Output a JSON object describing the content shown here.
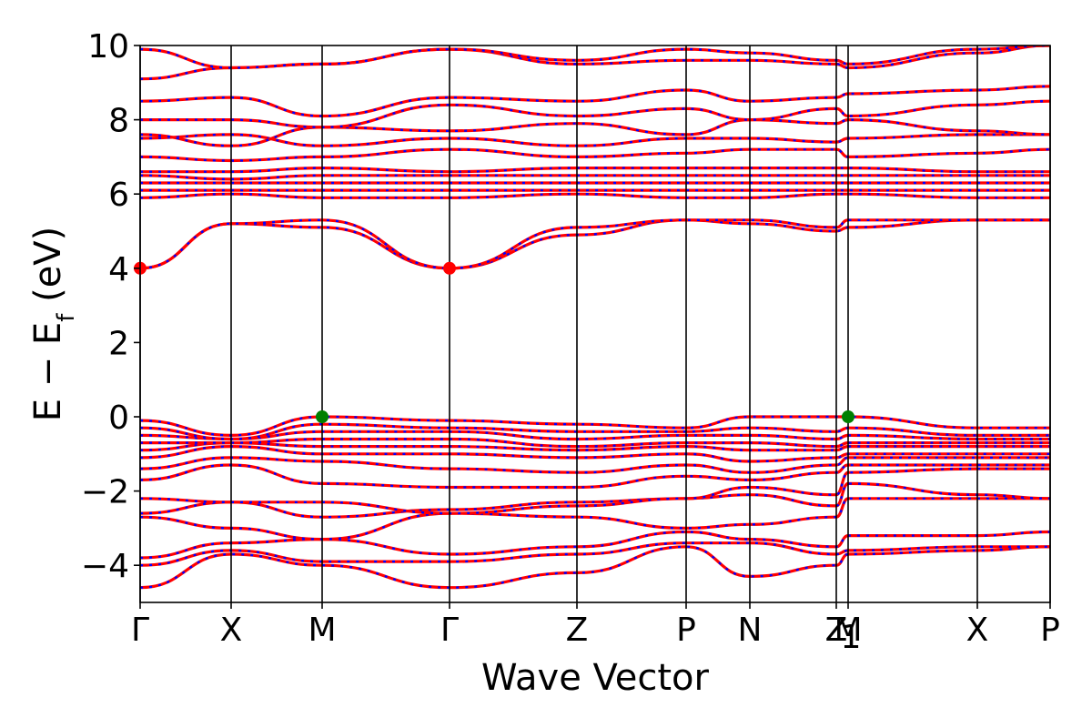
{
  "chart_data": {
    "type": "line",
    "title": "",
    "xlabel": "Wave Vector",
    "ylabel": "E − E",
    "ylabel_sub": "f",
    "ylabel_unit": " (eV)",
    "ylim": [
      -5,
      10
    ],
    "yticks": [
      {
        "value": 10,
        "label": "10"
      },
      {
        "value": 8,
        "label": "8"
      },
      {
        "value": 6,
        "label": "6"
      },
      {
        "value": 4,
        "label": "4"
      },
      {
        "value": 2,
        "label": "2"
      },
      {
        "value": 0,
        "label": "0"
      },
      {
        "value": -2,
        "label": "−2"
      },
      {
        "value": -4,
        "label": "−4"
      }
    ],
    "xlim": [
      0,
      10
    ],
    "kpoints": [
      {
        "x": 0.0,
        "label": "Γ"
      },
      {
        "x": 1.0,
        "label": "X"
      },
      {
        "x": 2.0,
        "label": "M"
      },
      {
        "x": 3.4,
        "label": "Γ"
      },
      {
        "x": 4.8,
        "label": "Z"
      },
      {
        "x": 6.0,
        "label": "P"
      },
      {
        "x": 6.7,
        "label": "N"
      },
      {
        "x": 7.65,
        "label": "Z"
      },
      {
        "x": 7.78,
        "label": "M"
      },
      {
        "x": 9.2,
        "label": "X"
      },
      {
        "x": 10.0,
        "label": "P"
      }
    ],
    "kpoint_label_extra": {
      "label": "1",
      "after_index": 7
    },
    "series_colors": {
      "primary": "#ff0000",
      "secondary": "#0000ff"
    },
    "markers": [
      {
        "x": 0.0,
        "y": 4.0,
        "type": "cbm",
        "color": "#ff0000"
      },
      {
        "x": 3.4,
        "y": 4.0,
        "type": "cbm",
        "color": "#ff0000"
      },
      {
        "x": 2.0,
        "y": 0.0,
        "type": "vbm",
        "color": "#008000"
      },
      {
        "x": 7.78,
        "y": 0.0,
        "type": "vbm",
        "color": "#008000"
      }
    ],
    "bands": [
      {
        "name": "",
        "x": [
          0,
          1,
          2,
          3.4,
          4.8,
          6,
          6.7,
          7.65,
          7.78,
          9.2,
          10
        ],
        "y": [
          -4.6,
          -3.7,
          -4.0,
          -4.6,
          -4.2,
          -3.5,
          -4.3,
          -4.0,
          -3.7,
          -3.6,
          -3.5
        ]
      },
      {
        "name": "",
        "x": [
          0,
          1,
          2,
          3.4,
          4.8,
          6,
          6.7,
          7.65,
          7.78,
          9.2,
          10
        ],
        "y": [
          -4.0,
          -3.6,
          -3.9,
          -3.9,
          -3.7,
          -3.4,
          -3.4,
          -3.7,
          -3.6,
          -3.5,
          -3.5
        ]
      },
      {
        "name": "",
        "x": [
          0,
          1,
          2,
          3.4,
          4.8,
          6,
          6.7,
          7.65,
          7.78,
          9.2,
          10
        ],
        "y": [
          -3.8,
          -3.4,
          -3.3,
          -3.7,
          -3.5,
          -3.1,
          -3.3,
          -3.5,
          -3.2,
          -3.2,
          -3.1
        ]
      },
      {
        "name": "",
        "x": [
          0,
          1,
          2,
          3.4,
          4.8,
          6,
          6.7,
          7.65,
          7.78,
          9.2,
          10
        ],
        "y": [
          -2.7,
          -3.0,
          -3.3,
          -2.6,
          -2.7,
          -3.0,
          -2.9,
          -2.7,
          -2.2,
          -2.2,
          -2.2
        ]
      },
      {
        "name": "",
        "x": [
          0,
          1,
          2,
          3.4,
          4.8,
          6,
          6.7,
          7.65,
          7.78,
          9.2,
          10
        ],
        "y": [
          -2.6,
          -2.3,
          -2.7,
          -2.5,
          -2.3,
          -2.2,
          -2.1,
          -2.4,
          -1.8,
          -2.1,
          -2.2
        ]
      },
      {
        "name": "",
        "x": [
          0,
          1,
          2,
          3.4,
          4.8,
          6,
          6.7,
          7.65,
          7.78,
          9.2,
          10
        ],
        "y": [
          -2.2,
          -2.3,
          -2.3,
          -2.6,
          -2.4,
          -2.2,
          -1.9,
          -2.1,
          -1.5,
          -1.4,
          -1.4
        ]
      },
      {
        "name": "",
        "x": [
          0,
          1,
          2,
          3.4,
          4.8,
          6,
          6.7,
          7.65,
          7.78,
          9.2,
          10
        ],
        "y": [
          -1.7,
          -1.3,
          -1.8,
          -1.9,
          -1.9,
          -1.6,
          -1.7,
          -1.5,
          -1.3,
          -1.3,
          -1.3
        ]
      },
      {
        "name": "",
        "x": [
          0,
          1,
          2,
          3.4,
          4.8,
          6,
          6.7,
          7.65,
          7.78,
          9.2,
          10
        ],
        "y": [
          -1.4,
          -1.1,
          -1.2,
          -1.4,
          -1.5,
          -1.3,
          -1.5,
          -1.3,
          -1.1,
          -1.1,
          -1.1
        ]
      },
      {
        "name": "",
        "x": [
          0,
          1,
          2,
          3.4,
          4.8,
          6,
          6.7,
          7.65,
          7.78,
          9.2,
          10
        ],
        "y": [
          -1.1,
          -0.8,
          -1.0,
          -1.0,
          -1.1,
          -1.0,
          -1.2,
          -1.1,
          -1.0,
          -1.0,
          -1.0
        ]
      },
      {
        "name": "",
        "x": [
          0,
          1,
          2,
          3.4,
          4.8,
          6,
          6.7,
          7.65,
          7.78,
          9.2,
          10
        ],
        "y": [
          -0.9,
          -0.7,
          -0.8,
          -0.8,
          -0.9,
          -0.8,
          -0.9,
          -0.9,
          -0.8,
          -0.8,
          -0.8
        ]
      },
      {
        "name": "",
        "x": [
          0,
          1,
          2,
          3.4,
          4.8,
          6,
          6.7,
          7.65,
          7.78,
          9.2,
          10
        ],
        "y": [
          -0.7,
          -0.7,
          -0.6,
          -0.6,
          -0.8,
          -0.7,
          -0.7,
          -0.8,
          -0.7,
          -0.7,
          -0.7
        ]
      },
      {
        "name": "",
        "x": [
          0,
          1,
          2,
          3.4,
          4.8,
          6,
          6.7,
          7.65,
          7.78,
          9.2,
          10
        ],
        "y": [
          -0.5,
          -0.6,
          -0.4,
          -0.4,
          -0.6,
          -0.5,
          -0.5,
          -0.6,
          -0.5,
          -0.6,
          -0.6
        ]
      },
      {
        "name": "",
        "x": [
          0,
          1,
          2,
          3.4,
          4.8,
          6,
          6.7,
          7.65,
          7.78,
          9.2,
          10
        ],
        "y": [
          -0.3,
          -0.6,
          -0.2,
          -0.3,
          -0.4,
          -0.4,
          -0.3,
          -0.4,
          -0.3,
          -0.5,
          -0.5
        ]
      },
      {
        "name": "",
        "x": [
          0,
          1,
          2,
          3.4,
          4.8,
          6,
          6.7,
          7.65,
          7.78,
          9.2,
          10
        ],
        "y": [
          -0.1,
          -0.5,
          0.0,
          -0.1,
          -0.2,
          -0.3,
          0.0,
          0.0,
          0.0,
          -0.3,
          -0.3
        ]
      },
      {
        "name": "",
        "x": [
          0,
          1,
          2,
          3.4,
          4.8,
          6,
          6.7,
          7.65,
          7.78,
          9.2,
          10
        ],
        "y": [
          4.0,
          5.2,
          5.1,
          4.0,
          4.9,
          5.3,
          5.2,
          5.0,
          5.1,
          5.3,
          5.3
        ]
      },
      {
        "name": "",
        "x": [
          0,
          1,
          2,
          3.4,
          4.8,
          6,
          6.7,
          7.65,
          7.78,
          9.2,
          10
        ],
        "y": [
          4.0,
          5.2,
          5.3,
          4.0,
          5.1,
          5.3,
          5.3,
          5.1,
          5.3,
          5.3,
          5.3
        ]
      },
      {
        "name": "",
        "x": [
          0,
          1,
          2,
          3.4,
          4.8,
          6,
          6.7,
          7.65,
          7.78,
          9.2,
          10
        ],
        "y": [
          5.9,
          6.0,
          5.9,
          5.9,
          6.0,
          5.9,
          5.9,
          6.0,
          6.0,
          5.9,
          5.9
        ]
      },
      {
        "name": "",
        "x": [
          0,
          1,
          2,
          3.4,
          4.8,
          6,
          6.7,
          7.65,
          7.78,
          9.2,
          10
        ],
        "y": [
          6.1,
          6.1,
          6.1,
          6.1,
          6.1,
          6.1,
          6.1,
          6.1,
          6.1,
          6.1,
          6.1
        ]
      },
      {
        "name": "",
        "x": [
          0,
          1,
          2,
          3.4,
          4.8,
          6,
          6.7,
          7.65,
          7.78,
          9.2,
          10
        ],
        "y": [
          6.3,
          6.3,
          6.3,
          6.3,
          6.3,
          6.3,
          6.3,
          6.3,
          6.3,
          6.3,
          6.3
        ]
      },
      {
        "name": "",
        "x": [
          0,
          1,
          2,
          3.4,
          4.8,
          6,
          6.7,
          7.65,
          7.78,
          9.2,
          10
        ],
        "y": [
          6.5,
          6.4,
          6.5,
          6.5,
          6.5,
          6.5,
          6.5,
          6.5,
          6.5,
          6.5,
          6.5
        ]
      },
      {
        "name": "",
        "x": [
          0,
          1,
          2,
          3.4,
          4.8,
          6,
          6.7,
          7.65,
          7.78,
          9.2,
          10
        ],
        "y": [
          6.6,
          6.6,
          6.7,
          6.6,
          6.7,
          6.7,
          6.7,
          6.7,
          6.7,
          6.6,
          6.6
        ]
      },
      {
        "name": "",
        "x": [
          0,
          1,
          2,
          3.4,
          4.8,
          6,
          6.7,
          7.65,
          7.78,
          9.2,
          10
        ],
        "y": [
          7.0,
          6.9,
          7.0,
          7.2,
          7.0,
          7.1,
          7.2,
          7.2,
          7.0,
          7.1,
          7.2
        ]
      },
      {
        "name": "",
        "x": [
          0,
          1,
          2,
          3.4,
          4.8,
          6,
          6.7,
          7.65,
          7.78,
          9.2,
          10
        ],
        "y": [
          7.5,
          7.6,
          7.3,
          7.5,
          7.3,
          7.5,
          7.5,
          7.4,
          7.5,
          7.6,
          7.6
        ]
      },
      {
        "name": "",
        "x": [
          0,
          1,
          2,
          3.4,
          4.8,
          6,
          6.7,
          7.65,
          7.78,
          9.2,
          10
        ],
        "y": [
          7.6,
          7.3,
          7.8,
          7.7,
          7.9,
          7.6,
          8.0,
          7.9,
          8.0,
          7.7,
          7.6
        ]
      },
      {
        "name": "",
        "x": [
          0,
          1,
          2,
          3.4,
          4.8,
          6,
          6.7,
          7.65,
          7.78,
          9.2,
          10
        ],
        "y": [
          8.0,
          8.0,
          7.8,
          8.4,
          8.1,
          8.3,
          8.0,
          8.3,
          8.1,
          8.4,
          8.5
        ]
      },
      {
        "name": "",
        "x": [
          0,
          1,
          2,
          3.4,
          4.8,
          6,
          6.7,
          7.65,
          7.78,
          9.2,
          10
        ],
        "y": [
          8.5,
          8.6,
          8.1,
          8.6,
          8.5,
          8.8,
          8.5,
          8.6,
          8.7,
          8.8,
          8.9
        ]
      },
      {
        "name": "",
        "x": [
          0,
          1,
          2,
          3.4,
          4.8,
          6,
          6.7,
          7.65,
          7.78,
          9.2,
          10
        ],
        "y": [
          9.1,
          9.4,
          9.5,
          9.9,
          9.5,
          9.6,
          9.6,
          9.5,
          9.4,
          9.8,
          10.0
        ]
      },
      {
        "name": "",
        "x": [
          0,
          1,
          2,
          3.4,
          4.8,
          6,
          6.7,
          7.65,
          7.78,
          9.2,
          10
        ],
        "y": [
          9.9,
          9.4,
          9.5,
          9.9,
          9.6,
          9.9,
          9.8,
          9.6,
          9.5,
          9.9,
          10.0
        ]
      }
    ]
  }
}
